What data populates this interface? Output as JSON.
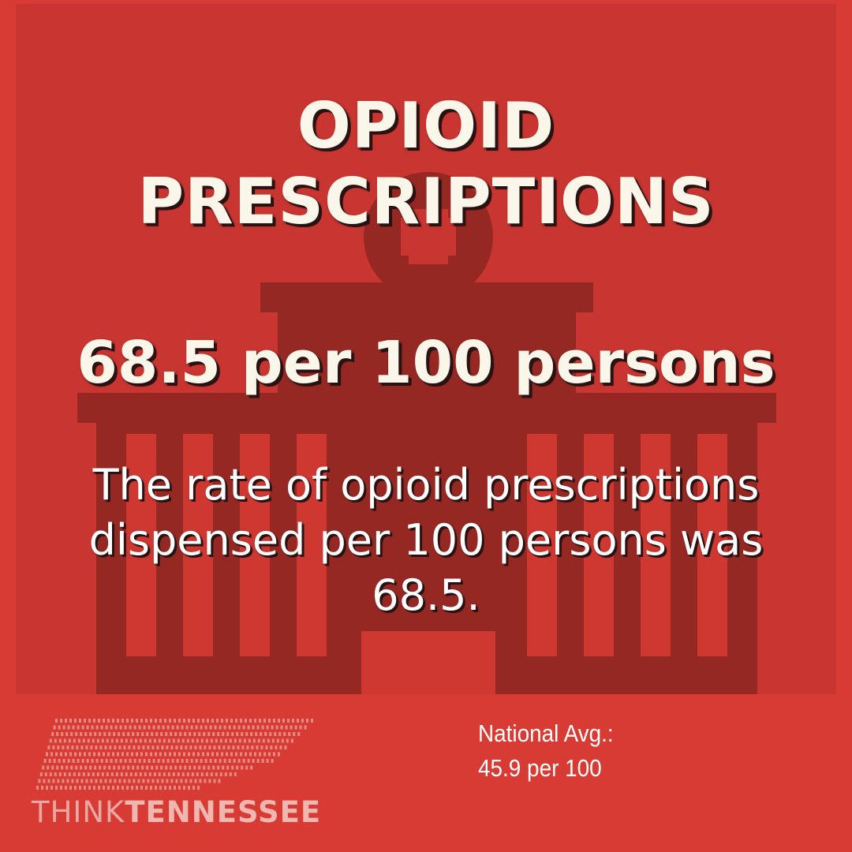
{
  "infographic": {
    "title_lines": [
      "OPIOID",
      "PRESCRIPTIONS"
    ],
    "statistic": "68.5 per 100 persons",
    "description": "The rate of opioid prescriptions dispensed per 100 persons was 68.5.",
    "national_avg_label": "National Avg.:",
    "national_avg_value": "45.9 per 100"
  },
  "logo": {
    "light_text": "THINK",
    "bold_text": "TENNESSEE",
    "icon": "tennessee-dot-map-icon"
  },
  "background_icon": "hospital-building-icon",
  "colors": {
    "background": "#d83a34",
    "panel": "#c93530",
    "building": "#962823",
    "text": "#faf6ea"
  }
}
